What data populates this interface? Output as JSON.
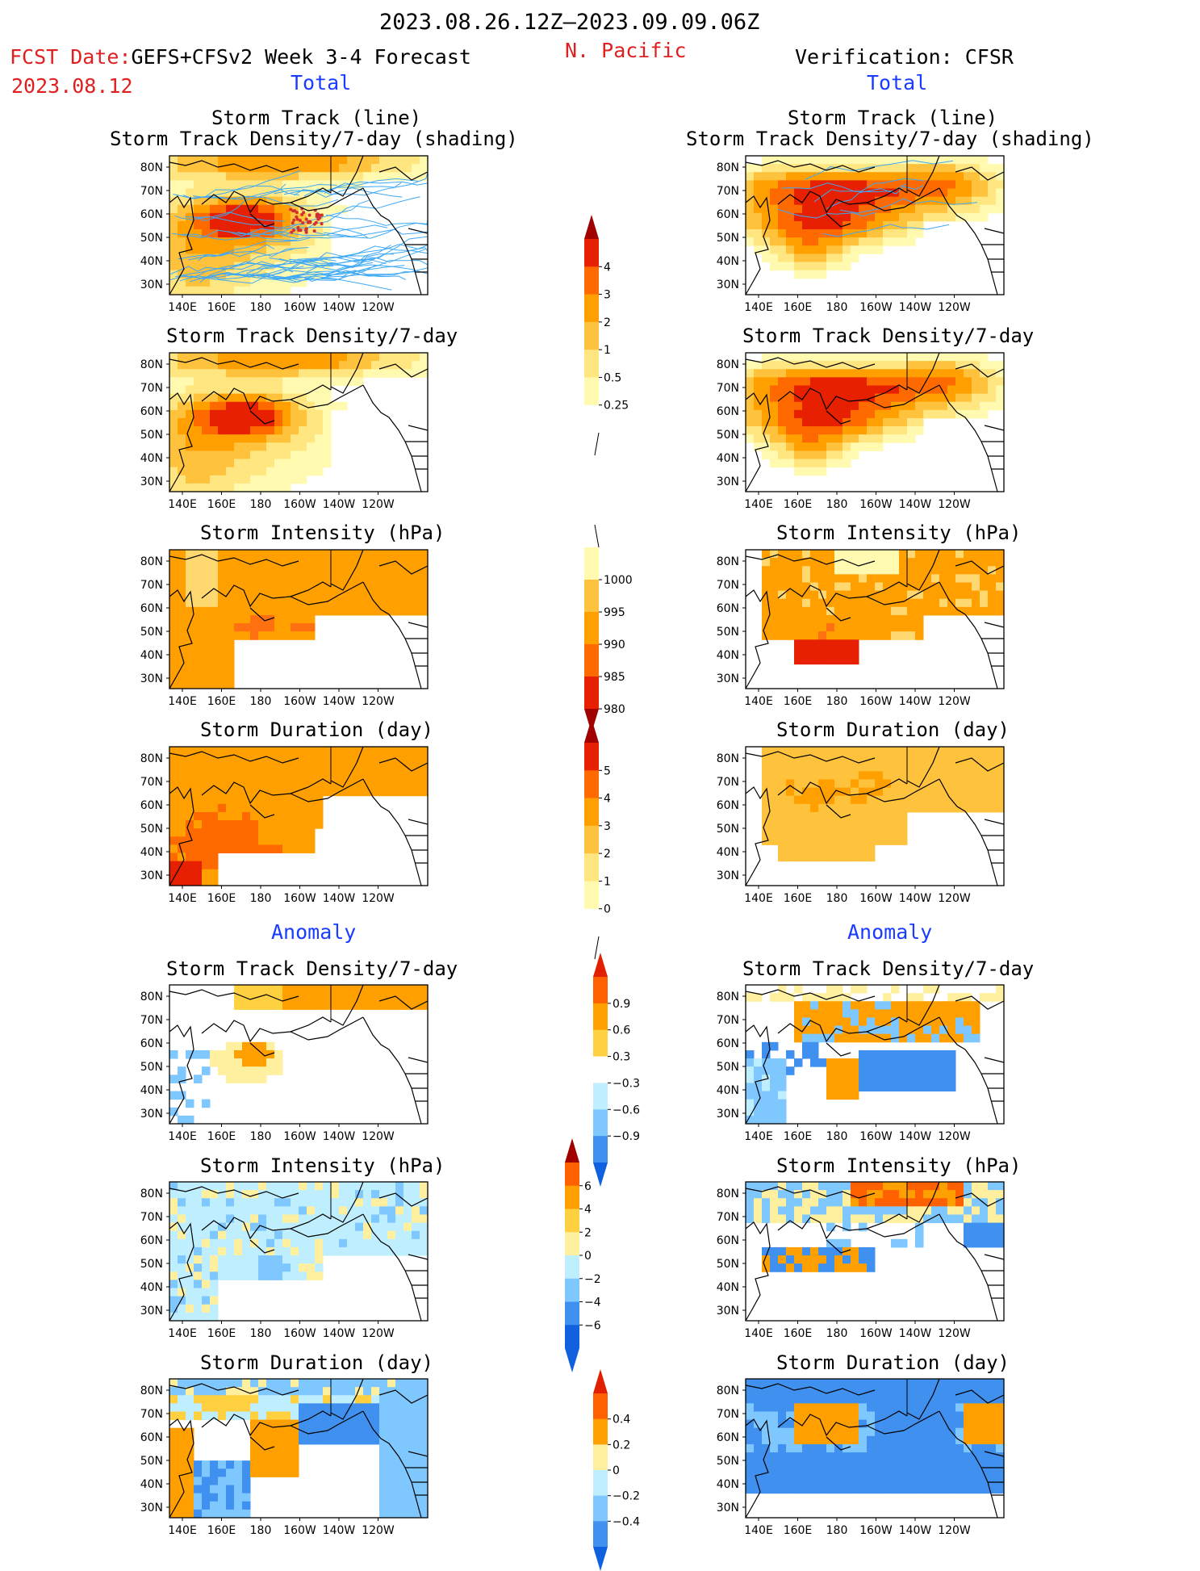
{
  "header": {
    "date_range": "2023.08.26.12Z–2023.09.09.06Z",
    "fcst_prefix": "FCST Date:",
    "fcst_model": "GEFS+CFSv2 Week 3-4 Forecast",
    "fcst_date": "2023.08.12",
    "region": "N. Pacific",
    "verification": "Verification: CFSR",
    "total_label": "Total",
    "anomaly_label": "Anomaly"
  },
  "map": {
    "x_ticks": [
      "140E",
      "160E",
      "180",
      "160W",
      "140W",
      "120W"
    ],
    "y_ticks": [
      "80N",
      "70N",
      "60N",
      "50N",
      "40N",
      "30N"
    ]
  },
  "panel_titles": {
    "storm_track_line": "Storm Track (line)",
    "storm_track_shading": "Storm Track Density/7-day (shading)",
    "density": "Storm Track Density/7-day",
    "intensity": "Storm Intensity (hPa)",
    "duration": "Storm Duration (day)"
  },
  "colorbars": {
    "density_total": [
      "4",
      "3",
      "2",
      "1",
      "0.5",
      "0.25"
    ],
    "intensity_total": [
      "1000",
      "995",
      "990",
      "985",
      "980"
    ],
    "duration_total": [
      "5",
      "4",
      "3",
      "2",
      "1",
      "0"
    ],
    "density_anom": [
      "0.9",
      "0.6",
      "0.3",
      "−0.3",
      "−0.6",
      "−0.9"
    ],
    "intensity_anom": [
      "6",
      "4",
      "2",
      "0",
      "−2",
      "−4",
      "−6"
    ],
    "duration_anom": [
      "0.4",
      "0.2",
      "0",
      "−0.2",
      "−0.4"
    ]
  },
  "colors": {
    "seq": [
      "#fffab0",
      "#ffe680",
      "#ffc23c",
      "#ffa000",
      "#ff6a00",
      "#e62000",
      "#a00000"
    ],
    "div_warm": [
      "#fff0a0",
      "#ffd040",
      "#ffa000",
      "#ff6000",
      "#e02000"
    ],
    "div_cool": [
      "#bfeeff",
      "#7fc8ff",
      "#4090f0",
      "#1060e0"
    ],
    "track_line": "#3fa9f5"
  }
}
